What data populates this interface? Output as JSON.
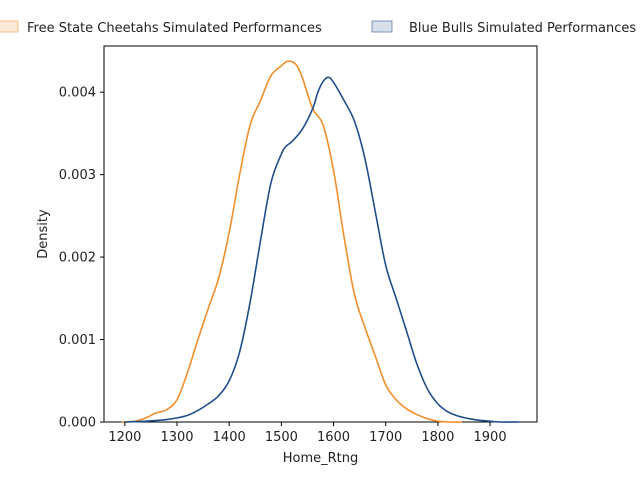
{
  "chart_data": {
    "type": "line",
    "title": "",
    "xlabel": "Home_Rtng",
    "ylabel": "Density",
    "xlim": [
      1160,
      1990
    ],
    "ylim": [
      0,
      0.00456
    ],
    "xticks": [
      1200,
      1300,
      1400,
      1500,
      1600,
      1700,
      1800,
      1900
    ],
    "xtick_labels": [
      "1200",
      "1300",
      "1400",
      "1500",
      "1600",
      "1700",
      "1800",
      "1900"
    ],
    "yticks": [
      0,
      0.001,
      0.002,
      0.003,
      0.004
    ],
    "ytick_labels": [
      "0.000",
      "0.001",
      "0.002",
      "0.003",
      "0.004"
    ],
    "grid": false,
    "legend_position": "top, above plot",
    "series": [
      {
        "name": "Free State Cheetahs Simulated Performances",
        "color": "#f28e2b",
        "x": [
          1195,
          1220,
          1240,
          1260,
          1280,
          1300,
          1320,
          1340,
          1360,
          1380,
          1400,
          1420,
          1440,
          1460,
          1480,
          1500,
          1510,
          1520,
          1530,
          1540,
          1560,
          1580,
          1600,
          1620,
          1640,
          1660,
          1680,
          1700,
          1720,
          1740,
          1760,
          1780,
          1800,
          1820,
          1845
        ],
        "y": [
          0,
          1e-05,
          5e-05,
          0.00011,
          0.00015,
          0.00027,
          0.0006,
          0.001,
          0.00138,
          0.00175,
          0.0023,
          0.003,
          0.0036,
          0.0039,
          0.0042,
          0.00432,
          0.00437,
          0.00437,
          0.00432,
          0.00418,
          0.0038,
          0.0036,
          0.00305,
          0.00225,
          0.00155,
          0.00115,
          0.0008,
          0.00045,
          0.00027,
          0.00016,
          9e-05,
          4e-05,
          1e-05,
          0,
          0
        ]
      },
      {
        "name": "Blue Bulls Simulated Performances",
        "color": "#1f4e8c",
        "x": [
          1200,
          1240,
          1280,
          1300,
          1320,
          1340,
          1360,
          1380,
          1400,
          1420,
          1440,
          1460,
          1480,
          1500,
          1510,
          1520,
          1540,
          1560,
          1570,
          1580,
          1590,
          1600,
          1620,
          1640,
          1660,
          1680,
          1700,
          1720,
          1740,
          1760,
          1780,
          1800,
          1820,
          1840,
          1860,
          1880,
          1900,
          1920,
          1955
        ],
        "y": [
          0,
          1e-05,
          3e-05,
          5e-05,
          8e-05,
          0.00014,
          0.00022,
          0.00032,
          0.0005,
          0.00085,
          0.00145,
          0.0022,
          0.0029,
          0.00325,
          0.00335,
          0.0034,
          0.00355,
          0.0038,
          0.004,
          0.00413,
          0.00418,
          0.00412,
          0.0039,
          0.00365,
          0.0032,
          0.00255,
          0.0019,
          0.0015,
          0.0011,
          0.0007,
          0.0004,
          0.00022,
          0.00012,
          7e-05,
          4e-05,
          2e-05,
          1e-05,
          0,
          0
        ]
      }
    ]
  }
}
